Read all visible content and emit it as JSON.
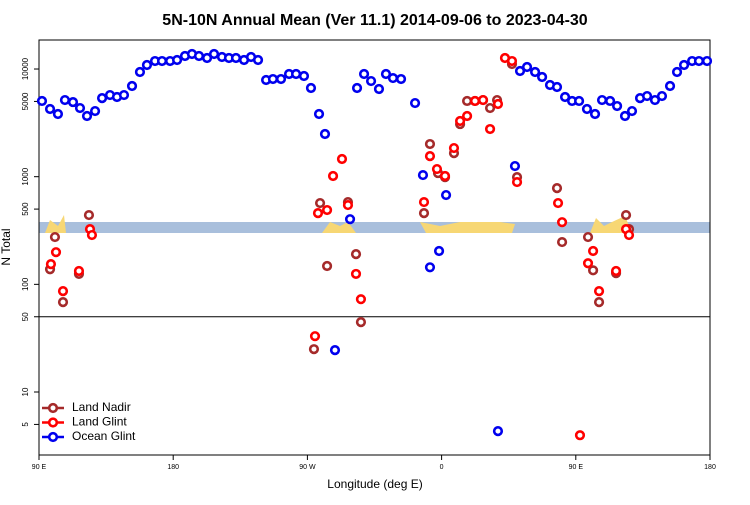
{
  "chart_data": {
    "type": "scatter",
    "title": "5N-10N Annual Mean (Ver 11.1)   2014-09-06 to 2023-04-30",
    "x_label": "Longitude (deg E)",
    "y_label": "N Total",
    "xlim": [
      90,
      540
    ],
    "xticks": [
      {
        "value": 90,
        "label": "90 E"
      },
      180,
      {
        "value": 270,
        "label": "90 W"
      },
      {
        "value": 360,
        "label": "0"
      },
      {
        "value": 450,
        "label": "90 E"
      },
      {
        "value": 540,
        "label": "180"
      }
    ],
    "ylim": [
      2.6,
      18600
    ],
    "ylog": true,
    "yticks": [
      5,
      10,
      50,
      100,
      500,
      1000,
      5000,
      10000
    ],
    "reference_line": 50,
    "legend": "bottom-left",
    "series": [
      {
        "name": "Land Nadir",
        "color": "#a52a2a",
        "x": [
          97.4,
          100.7,
          106.1,
          116.8,
          123.5,
          274.4,
          278.5,
          283.2,
          297.2,
          302.6,
          305.9,
          348.2,
          352.2,
          357.6,
          362.3,
          368.3,
          372.4,
          377.1,
          382.4,
          387.8,
          392.5,
          397.2,
          407.2,
          410.6,
          437.4,
          440.8,
          458.2,
          461.6,
          465.6,
          477.0,
          483.7,
          485.7
        ],
        "values": [
          138,
          275,
          68.4,
          125,
          440,
          25,
          569,
          148,
          581,
          191,
          44.6,
          459,
          2010,
          1080,
          991,
          1656,
          3080,
          5050,
          5050,
          5150,
          4340,
          5150,
          11120,
          991,
          783,
          247,
          275,
          135,
          68.4,
          127,
          440,
          326
        ]
      },
      {
        "name": "Land Glint",
        "color": "#ff0000",
        "x": [
          98.0,
          101.4,
          106.1,
          116.8,
          124.2,
          125.5,
          275.1,
          277.1,
          283.2,
          287.2,
          293.2,
          297.2,
          302.6,
          305.9,
          348.2,
          352.2,
          356.9,
          362.3,
          368.3,
          372.4,
          377.1,
          382.4,
          387.8,
          392.5,
          397.8,
          402.5,
          407.2,
          410.6,
          438.1,
          440.8,
          452.8,
          458.2,
          461.6,
          465.6,
          477.0,
          483.7,
          485.7
        ],
        "values": [
          154,
          199,
          86.5,
          133,
          326,
          287,
          33,
          459,
          490,
          1014,
          1459,
          545,
          125,
          72.8,
          581,
          1553,
          1177,
          1014,
          1845,
          3290,
          3660,
          5050,
          5150,
          2770,
          4730,
          12650,
          11860,
          891,
          569,
          378,
          3.97,
          157,
          204,
          86.5,
          133,
          326,
          287
        ]
      },
      {
        "name": "Ocean Glint",
        "color": "#0000ee",
        "x": [
          92.0,
          97.4,
          102.7,
          107.4,
          112.8,
          117.5,
          122.2,
          127.6,
          132.3,
          137.6,
          142.3,
          147.0,
          152.4,
          157.7,
          162.4,
          167.8,
          172.5,
          177.9,
          182.6,
          187.9,
          192.6,
          197.3,
          202.7,
          207.4,
          212.7,
          217.4,
          222.1,
          227.5,
          232.2,
          236.9,
          242.3,
          246.9,
          252.3,
          257.7,
          262.4,
          267.7,
          272.4,
          277.8,
          281.8,
          288.5,
          298.6,
          303.3,
          308.0,
          312.7,
          318.0,
          322.7,
          327.4,
          332.8,
          342.2,
          347.5,
          352.2,
          358.3,
          363.0,
          397.8,
          409.2,
          412.6,
          417.3,
          422.7,
          427.4,
          432.7,
          437.4,
          442.8,
          447.5,
          452.2,
          457.5,
          462.9,
          467.6,
          473.0,
          477.7,
          483.0,
          487.7,
          493.1,
          497.8,
          503.1,
          507.8,
          513.2,
          517.9,
          522.6,
          528.0,
          532.6,
          538.0
        ],
        "values": [
          5050,
          4250,
          3820,
          5150,
          4930,
          4340,
          3660,
          4070,
          5370,
          5730,
          5500,
          5730,
          6950,
          9380,
          10900,
          11860,
          11860,
          11860,
          12130,
          13210,
          13780,
          13210,
          12650,
          13780,
          12930,
          12650,
          12650,
          12130,
          12930,
          12130,
          7910,
          8070,
          8070,
          8990,
          8990,
          8610,
          6660,
          3820,
          2490,
          24.5,
          403,
          6660,
          8990,
          7730,
          6520,
          8990,
          8240,
          8070,
          4830,
          1035,
          144,
          204,
          675,
          4.33,
          1255,
          9580,
          10440,
          9380,
          8430,
          7100,
          6810,
          5500,
          5050,
          5050,
          4250,
          3820,
          5150,
          5050,
          4530,
          3660,
          4070,
          5370,
          5610,
          5150,
          5610,
          6950,
          9380,
          10900,
          11860,
          11860,
          11860
        ]
      }
    ]
  }
}
